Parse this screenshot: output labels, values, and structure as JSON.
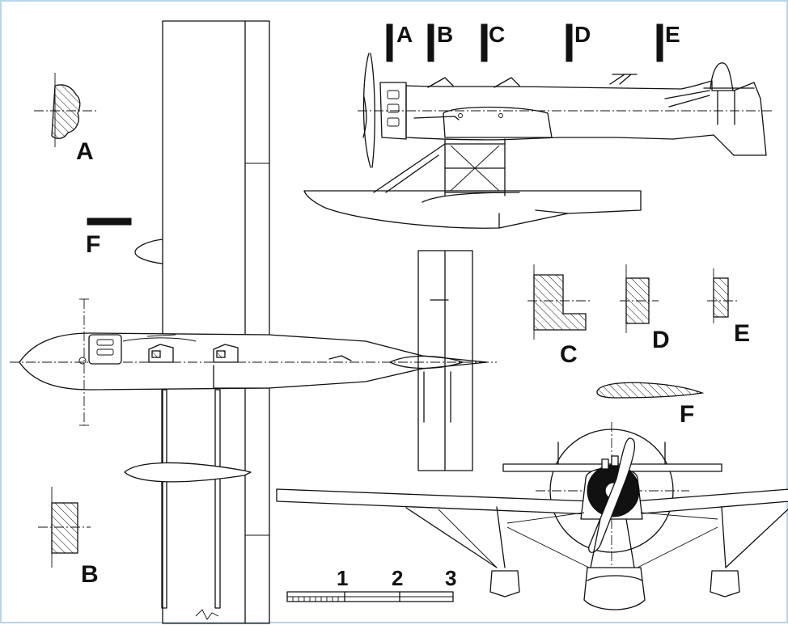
{
  "section_marks": [
    "A",
    "B",
    "C",
    "D",
    "E"
  ],
  "sections": {
    "a": "A",
    "b": "B",
    "c": "C",
    "d": "D",
    "e": "E",
    "f": "F"
  },
  "scale_bar": {
    "ticks": [
      "1",
      "2",
      "3"
    ]
  }
}
